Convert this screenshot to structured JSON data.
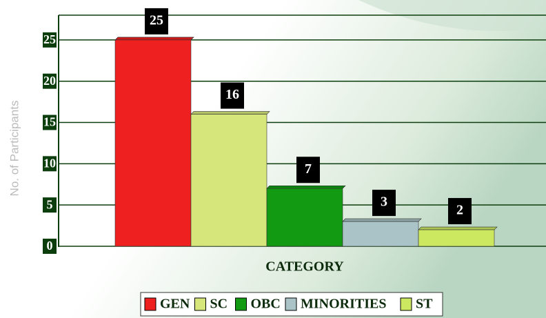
{
  "chart_data": {
    "type": "bar",
    "x_label": "CATEGORY",
    "y_label": "No. of Participants",
    "categories": [
      "GEN",
      "SC",
      "OBC",
      "MINORITIES",
      "ST"
    ],
    "values": [
      25,
      16,
      7,
      3,
      2
    ],
    "colors": [
      "#ee2020",
      "#d6e67a",
      "#129a12",
      "#a9c3c6",
      "#cbe860"
    ],
    "ylim": [
      0,
      28
    ],
    "yticks": [
      0,
      5,
      10,
      15,
      20,
      25
    ],
    "grid": true,
    "legend": "bottom"
  }
}
